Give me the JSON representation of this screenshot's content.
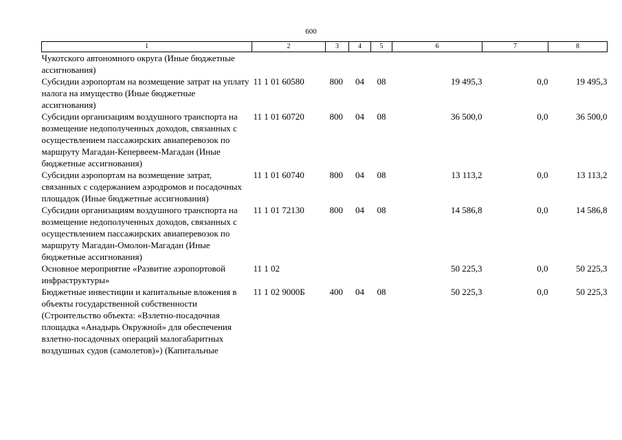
{
  "page": {
    "number": "600"
  },
  "table": {
    "column_numbers": [
      "1",
      "2",
      "3",
      "4",
      "5",
      "6",
      "7",
      "8"
    ],
    "rows": [
      {
        "name": "Чукотского автономного округа (Иные бюджетные ассигнования)",
        "code": "",
        "c3": "",
        "c4": "",
        "c5": "",
        "c6": "",
        "c7": "",
        "c8": ""
      },
      {
        "name": "Субсидии аэропортам на возмещение затрат на уплату налога на имущество (Иные бюджетные ассигнования)",
        "code": "11 1 01 60580",
        "c3": "800",
        "c4": "04",
        "c5": "08",
        "c6": "19 495,3",
        "c7": "0,0",
        "c8": "19 495,3"
      },
      {
        "name": "Субсидии организациям воздушного транспорта на возмещение недополученных доходов, связанных с осуществлением пассажирских авиаперевозок по маршруту Магадан-Кепервеем-Магадан (Иные бюджетные ассигнования)",
        "code": "11 1 01 60720",
        "c3": "800",
        "c4": "04",
        "c5": "08",
        "c6": "36 500,0",
        "c7": "0,0",
        "c8": "36 500,0"
      },
      {
        "name": "Субсидии аэропортам на возмещение затрат, связанных с содержанием аэродромов и посадочных площадок (Иные бюджетные ассигнования)",
        "code": "11 1 01 60740",
        "c3": "800",
        "c4": "04",
        "c5": "08",
        "c6": "13 113,2",
        "c7": "0,0",
        "c8": "13 113,2"
      },
      {
        "name": "Субсидии организациям воздушного транспорта на возмещение недополученных доходов, связанных с осуществлением пассажирских авиаперевозок по маршруту Магадан-Омолон-Магадан (Иные бюджетные ассигнования)",
        "code": "11 1 01 72130",
        "c3": "800",
        "c4": "04",
        "c5": "08",
        "c6": "14 586,8",
        "c7": "0,0",
        "c8": "14 586,8"
      },
      {
        "name": "Основное мероприятие «Развитие аэропортовой инфраструктуры»",
        "code": "11 1 02",
        "c3": "",
        "c4": "",
        "c5": "",
        "c6": "50 225,3",
        "c7": "0,0",
        "c8": "50 225,3"
      },
      {
        "name": "Бюджетные инвестиции и капитальные вложения в объекты государственной собственности (Строительство объекта: «Взлетно-посадочная площадка «Анадырь Окружной» для обеспечения взлетно-посадочных операций малогабаритных воздушных судов (самолетов)») (Капитальные",
        "code": "11 1 02 9000Б",
        "c3": "400",
        "c4": "04",
        "c5": "08",
        "c6": "50 225,3",
        "c7": "0,0",
        "c8": "50 225,3"
      }
    ]
  }
}
